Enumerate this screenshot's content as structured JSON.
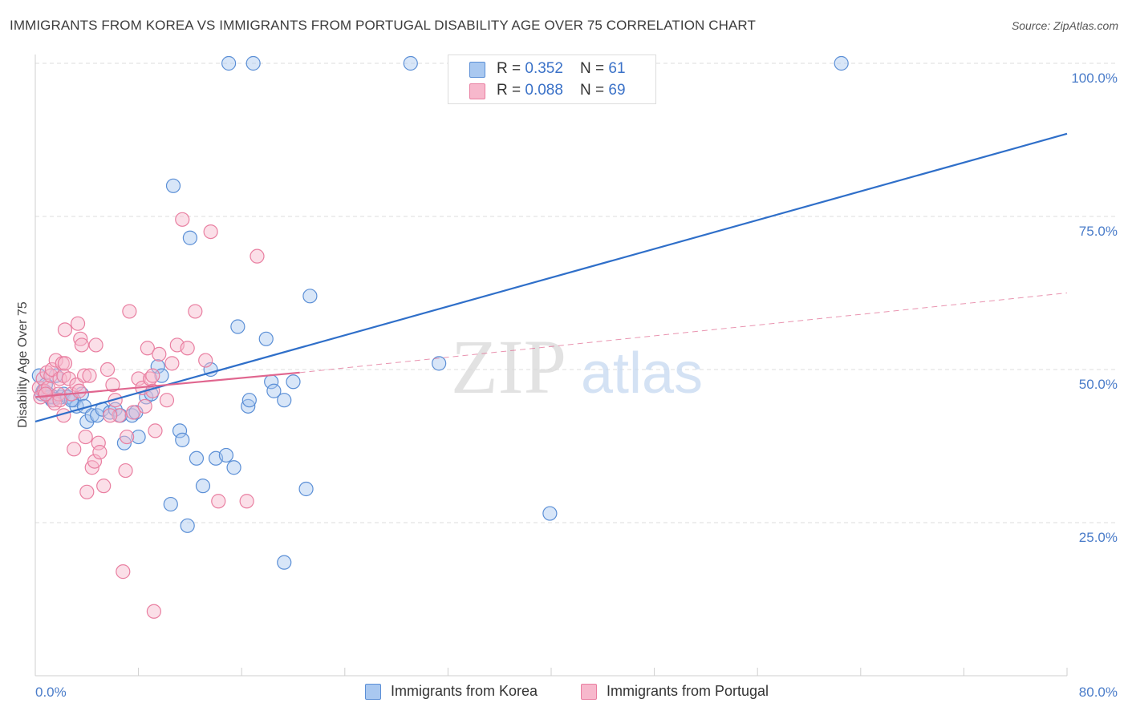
{
  "header": {
    "title": "IMMIGRANTS FROM KOREA VS IMMIGRANTS FROM PORTUGAL DISABILITY AGE OVER 75 CORRELATION CHART",
    "source": "Source: ZipAtlas.com"
  },
  "colors": {
    "korea_fill": "#a9c8f0",
    "korea_stroke": "#5b8fd6",
    "korea_line": "#2f6fc9",
    "portugal_fill": "#f7b8cc",
    "portugal_stroke": "#e97fa1",
    "portugal_line": "#e0668f",
    "tick_text": "#4a7cc9"
  },
  "legend": {
    "korea": {
      "r_label": "R = ",
      "r_value": "0.352",
      "n_label": "N = ",
      "n_value": "61"
    },
    "portugal": {
      "r_label": "R = ",
      "r_value": "0.088",
      "n_label": "N = ",
      "n_value": "69"
    }
  },
  "watermark": {
    "zip": "ZIP",
    "atlas": "atlas"
  },
  "chart_data": {
    "type": "scatter",
    "title": "IMMIGRANTS FROM KOREA VS IMMIGRANTS FROM PORTUGAL DISABILITY AGE OVER 75 CORRELATION CHART",
    "xlabel": "",
    "ylabel": "Disability Age Over 75",
    "xlim": [
      0,
      80
    ],
    "ylim": [
      0,
      105
    ],
    "x_tick_labels": [
      "0.0%",
      "80.0%"
    ],
    "y_ticks": [
      25,
      50,
      75,
      100
    ],
    "y_tick_labels": [
      "25.0%",
      "50.0%",
      "75.0%",
      "100.0%"
    ],
    "grid": true,
    "legend_position": "bottom",
    "series": [
      {
        "name": "Immigrants from Korea",
        "color": "#5b8fd6",
        "r": 0.352,
        "n": 61,
        "trend": {
          "x": [
            0,
            80
          ],
          "y": [
            41.5,
            88.5
          ],
          "style": "solid"
        },
        "points": [
          [
            0.3,
            49
          ],
          [
            0.5,
            46
          ],
          [
            0.6,
            46.5
          ],
          [
            0.8,
            47.5
          ],
          [
            1,
            46
          ],
          [
            1.3,
            45
          ],
          [
            1.4,
            45.5
          ],
          [
            1.6,
            49
          ],
          [
            2,
            45.5
          ],
          [
            2.2,
            46
          ],
          [
            2.5,
            45.5
          ],
          [
            3,
            45
          ],
          [
            3.2,
            44
          ],
          [
            3.6,
            46
          ],
          [
            3.8,
            44
          ],
          [
            4,
            41.5
          ],
          [
            4.4,
            42.5
          ],
          [
            4.8,
            42.5
          ],
          [
            5.2,
            43.5
          ],
          [
            5.8,
            43
          ],
          [
            6.2,
            43.5
          ],
          [
            6.6,
            42.5
          ],
          [
            6.9,
            38
          ],
          [
            7.5,
            42.5
          ],
          [
            7.8,
            43
          ],
          [
            8,
            39
          ],
          [
            8.6,
            45.5
          ],
          [
            9,
            46
          ],
          [
            9.5,
            50.5
          ],
          [
            9.8,
            49
          ],
          [
            10.5,
            28
          ],
          [
            10.7,
            80
          ],
          [
            11.2,
            40
          ],
          [
            11.4,
            38.5
          ],
          [
            11.8,
            24.5
          ],
          [
            12,
            71.5
          ],
          [
            12.5,
            35.5
          ],
          [
            13,
            31
          ],
          [
            13.6,
            50
          ],
          [
            14,
            35.5
          ],
          [
            14.8,
            36
          ],
          [
            15.4,
            34
          ],
          [
            15.7,
            57
          ],
          [
            16.5,
            44
          ],
          [
            16.6,
            45
          ],
          [
            17.9,
            55
          ],
          [
            18.3,
            48
          ],
          [
            18.5,
            46.5
          ],
          [
            19.3,
            18.5
          ],
          [
            19.3,
            45
          ],
          [
            20,
            48
          ],
          [
            21,
            30.5
          ],
          [
            21.3,
            62
          ],
          [
            31.3,
            51
          ],
          [
            39.9,
            26.5
          ],
          [
            15,
            100
          ],
          [
            16.9,
            100
          ],
          [
            29.1,
            100
          ],
          [
            62.5,
            100
          ],
          [
            1.1,
            45.5
          ],
          [
            2.8,
            45
          ]
        ]
      },
      {
        "name": "Immigrants from Portugal",
        "color": "#e97fa1",
        "r": 0.088,
        "n": 69,
        "trend": {
          "x": [
            0,
            20.5
          ],
          "y": [
            45.5,
            49.5
          ],
          "style": "solid"
        },
        "trend_extension": {
          "x": [
            20.5,
            80
          ],
          "y": [
            49.5,
            62.5
          ],
          "style": "dashed"
        },
        "points": [
          [
            0.3,
            47
          ],
          [
            0.4,
            45.5
          ],
          [
            0.6,
            48.5
          ],
          [
            0.7,
            46.5
          ],
          [
            0.9,
            49.5
          ],
          [
            1,
            47
          ],
          [
            1.2,
            49
          ],
          [
            1.3,
            50
          ],
          [
            1.4,
            45
          ],
          [
            1.5,
            44.5
          ],
          [
            1.6,
            51.5
          ],
          [
            1.8,
            46
          ],
          [
            1.9,
            48.5
          ],
          [
            2.1,
            51
          ],
          [
            2.2,
            49
          ],
          [
            2.3,
            51
          ],
          [
            2.2,
            42.5
          ],
          [
            2.3,
            56.5
          ],
          [
            2.6,
            48.5
          ],
          [
            2.8,
            46
          ],
          [
            3,
            37
          ],
          [
            3.2,
            47.5
          ],
          [
            3.3,
            57.5
          ],
          [
            3.5,
            55
          ],
          [
            3.6,
            54
          ],
          [
            3.8,
            49
          ],
          [
            3.9,
            39
          ],
          [
            4,
            30
          ],
          [
            4.2,
            49
          ],
          [
            4.4,
            34
          ],
          [
            4.6,
            35
          ],
          [
            4.7,
            54
          ],
          [
            4.9,
            38
          ],
          [
            5,
            36.5
          ],
          [
            5.3,
            31
          ],
          [
            5.6,
            50
          ],
          [
            6,
            47.5
          ],
          [
            6.2,
            45
          ],
          [
            6.5,
            42.5
          ],
          [
            6.8,
            17
          ],
          [
            7,
            33.5
          ],
          [
            7.1,
            39
          ],
          [
            7.3,
            59.5
          ],
          [
            7.6,
            43
          ],
          [
            8,
            48.5
          ],
          [
            8.3,
            47
          ],
          [
            8.5,
            44
          ],
          [
            8.7,
            53.5
          ],
          [
            8.9,
            48.5
          ],
          [
            9.1,
            46.5
          ],
          [
            9.2,
            10.5
          ],
          [
            9.3,
            40
          ],
          [
            9.6,
            52.5
          ],
          [
            10.2,
            45
          ],
          [
            10.6,
            51
          ],
          [
            11,
            54
          ],
          [
            11.4,
            74.5
          ],
          [
            11.8,
            53.5
          ],
          [
            12.4,
            59.5
          ],
          [
            13.2,
            51.5
          ],
          [
            13.6,
            72.5
          ],
          [
            14.2,
            28.5
          ],
          [
            16.4,
            28.5
          ],
          [
            17.2,
            68.5
          ],
          [
            9.1,
            49
          ],
          [
            1.9,
            45
          ],
          [
            3.4,
            46.5
          ],
          [
            5.8,
            42.5
          ],
          [
            0.8,
            46
          ]
        ]
      }
    ]
  },
  "bottom_legend": {
    "korea_label": "Immigrants from Korea",
    "portugal_label": "Immigrants from Portugal"
  }
}
